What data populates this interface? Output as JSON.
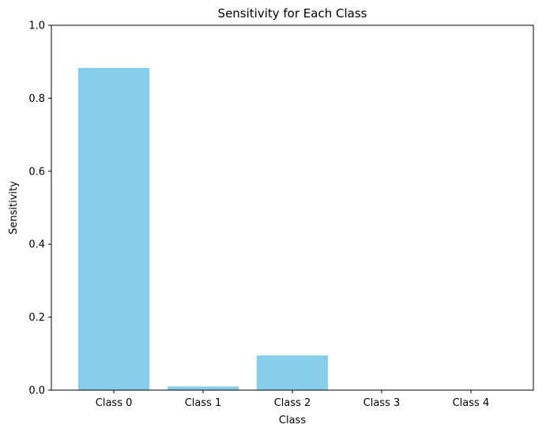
{
  "chart_data": {
    "type": "bar",
    "title": "Sensitivity for Each Class",
    "xlabel": "Class",
    "ylabel": "Sensitivity",
    "categories": [
      "Class 0",
      "Class 1",
      "Class 2",
      "Class 3",
      "Class 4"
    ],
    "values": [
      0.883,
      0.01,
      0.095,
      0.0,
      0.0
    ],
    "ylim": [
      0,
      1.0
    ],
    "yticks": [
      "0.0",
      "0.2",
      "0.4",
      "0.6",
      "0.8",
      "1.0"
    ],
    "bar_color": "#87CEEB",
    "grid": false,
    "legend": "none"
  }
}
